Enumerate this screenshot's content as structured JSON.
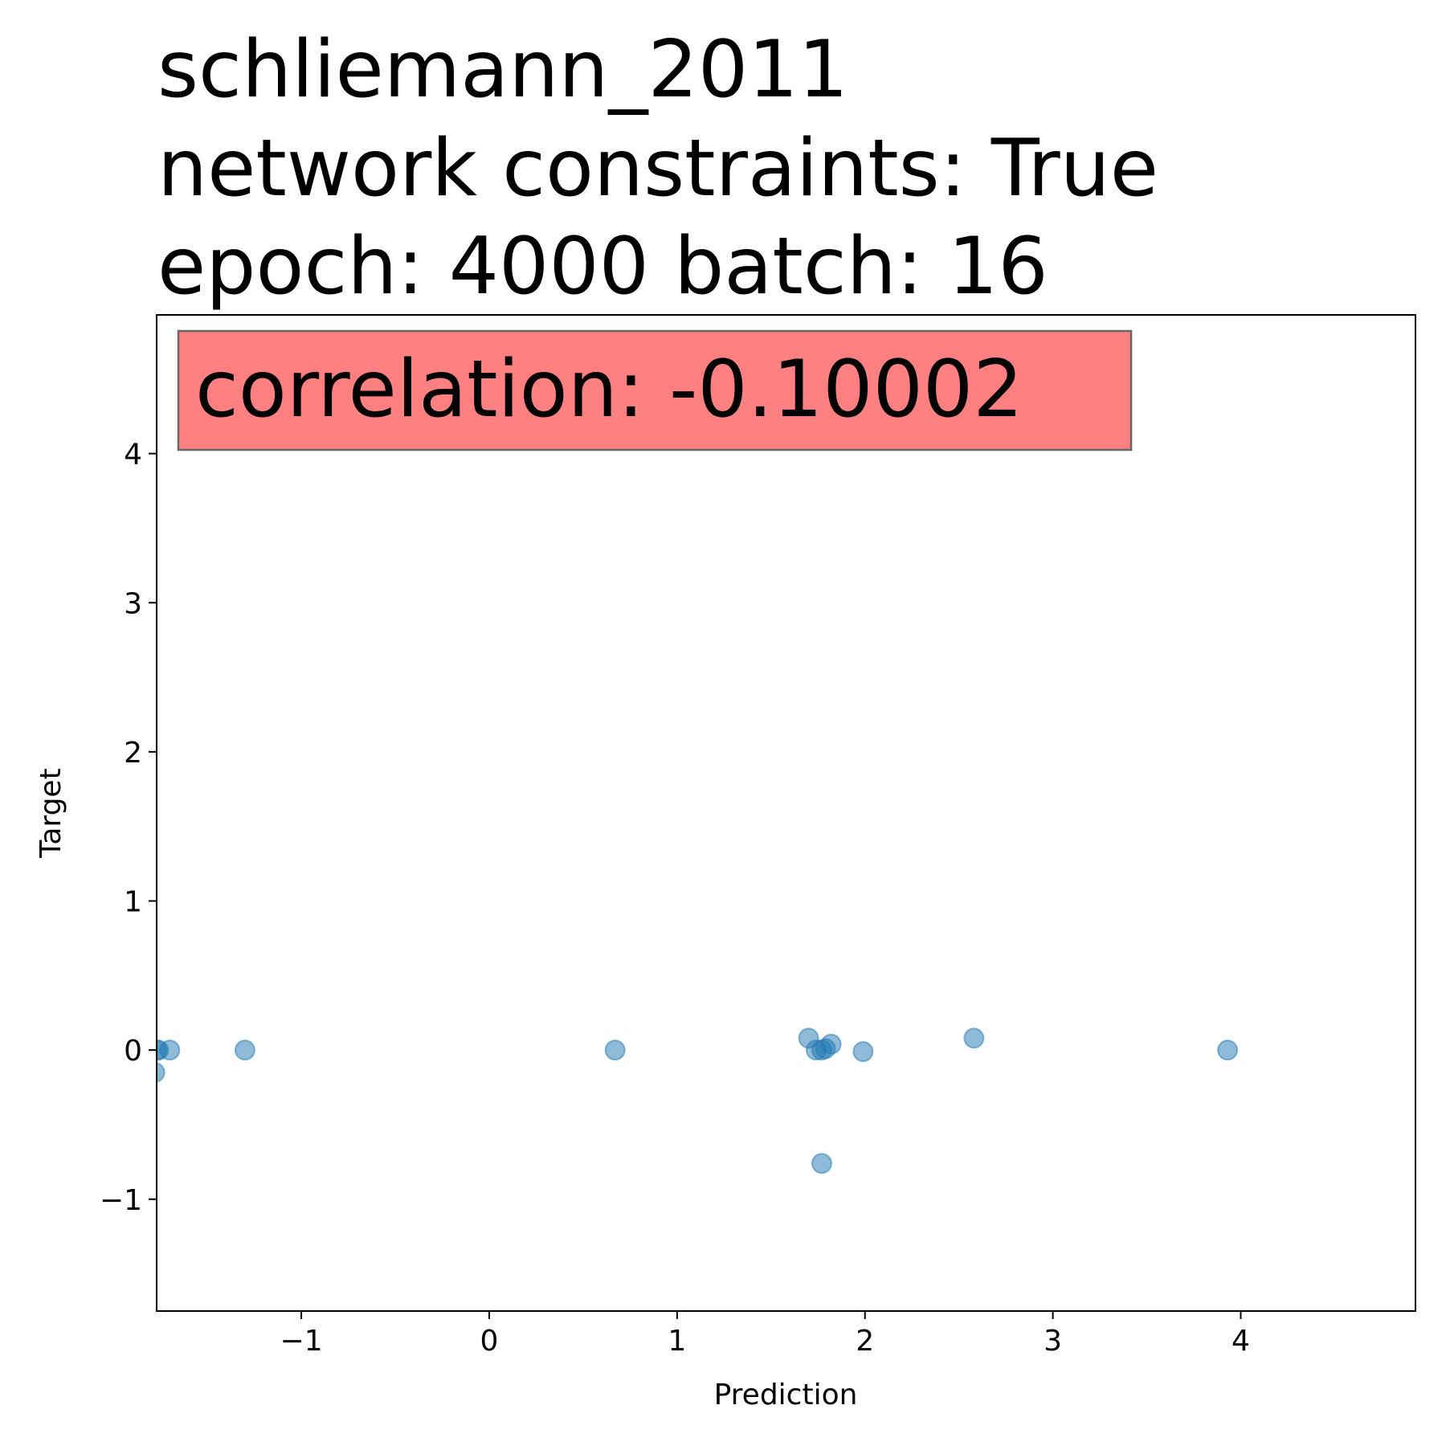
{
  "chart_data": {
    "type": "scatter",
    "title_lines": [
      "schliemann_2011",
      "network constraints: True",
      "epoch: 4000 batch: 16"
    ],
    "xlabel": "Prediction",
    "ylabel": "Target",
    "xlim": [
      -1.77,
      4.93
    ],
    "ylim": [
      -1.75,
      4.93
    ],
    "x_ticks": [
      -1,
      0,
      1,
      2,
      3,
      4
    ],
    "x_tick_labels": [
      "−1",
      "0",
      "1",
      "2",
      "3",
      "4"
    ],
    "y_ticks": [
      -1,
      0,
      1,
      2,
      3,
      4
    ],
    "y_tick_labels": [
      "−1",
      "0",
      "1",
      "2",
      "3",
      "4"
    ],
    "grid": false,
    "annotation": {
      "text": "correlation: -0.10002",
      "background_color": "#ff8080",
      "border_color": "#666666",
      "placement": "top-left"
    },
    "marker_color": "#1f77b4",
    "marker_alpha": 0.5,
    "series": [
      {
        "points": [
          {
            "x": -1.77,
            "y": 0.0
          },
          {
            "x": -1.76,
            "y": 0.0
          },
          {
            "x": -1.7,
            "y": 0.0
          },
          {
            "x": -1.78,
            "y": -0.15
          },
          {
            "x": -1.3,
            "y": 0.0
          },
          {
            "x": 0.67,
            "y": 0.0
          },
          {
            "x": 1.7,
            "y": 0.08
          },
          {
            "x": 1.74,
            "y": 0.0
          },
          {
            "x": 1.77,
            "y": 0.0
          },
          {
            "x": 1.79,
            "y": 0.01
          },
          {
            "x": 1.82,
            "y": 0.04
          },
          {
            "x": 1.77,
            "y": -0.76
          },
          {
            "x": 1.99,
            "y": -0.01
          },
          {
            "x": 2.58,
            "y": 0.08
          },
          {
            "x": 3.93,
            "y": 0.0
          }
        ]
      }
    ]
  }
}
